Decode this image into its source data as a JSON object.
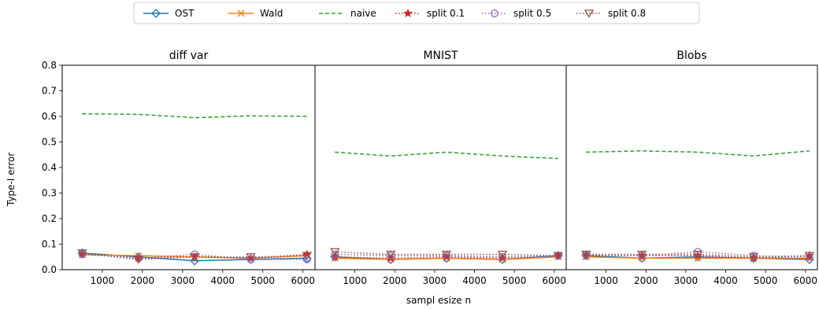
{
  "legend": {
    "placement": "top-center",
    "entries": [
      {
        "label": "OST",
        "color": "#1f77b4",
        "dash": "solid",
        "marker": "diamond"
      },
      {
        "label": "Wald",
        "color": "#ff7f0e",
        "dash": "solid",
        "marker": "x"
      },
      {
        "label": "naive",
        "color": "#2ca02c",
        "dash": "dashed",
        "marker": "none"
      },
      {
        "label": "split 0.1",
        "color": "#d62728",
        "dash": "dotted",
        "marker": "star"
      },
      {
        "label": "split 0.5",
        "color": "#9467bd",
        "dash": "dotted",
        "marker": "circle"
      },
      {
        "label": "split 0.8",
        "color": "#8c564b",
        "dash": "dotted",
        "marker": "triangle-down"
      }
    ]
  },
  "xlabel": "sampl esize n",
  "ylabel": "Type-I error",
  "chart_data": [
    {
      "type": "line",
      "title": "diff var",
      "x": [
        500,
        1900,
        3300,
        4700,
        6100
      ],
      "xlim": [
        0,
        6300
      ],
      "ylim": [
        0,
        0.8
      ],
      "xticks": [
        "1000",
        "2000",
        "3000",
        "4000",
        "5000",
        "6000"
      ],
      "yticks": [
        "0.0",
        "0.1",
        "0.2",
        "0.3",
        "0.4",
        "0.5",
        "0.6",
        "0.7",
        "0.8"
      ],
      "series": [
        {
          "name": "OST",
          "values": [
            0.065,
            0.05,
            0.035,
            0.04,
            0.045
          ]
        },
        {
          "name": "Wald",
          "values": [
            0.058,
            0.055,
            0.05,
            0.045,
            0.055
          ]
        },
        {
          "name": "naive",
          "values": [
            0.61,
            0.608,
            0.595,
            0.602,
            0.6
          ]
        },
        {
          "name": "split 0.1",
          "values": [
            0.062,
            0.045,
            0.05,
            0.045,
            0.06
          ]
        },
        {
          "name": "split 0.5",
          "values": [
            0.06,
            0.045,
            0.06,
            0.04,
            0.04
          ]
        },
        {
          "name": "split 0.8",
          "values": [
            0.065,
            0.04,
            0.05,
            0.05,
            0.055
          ]
        }
      ]
    },
    {
      "type": "line",
      "title": "MNIST",
      "x": [
        500,
        1900,
        3300,
        4700,
        6100
      ],
      "xlim": [
        0,
        6300
      ],
      "ylim": [
        0,
        0.8
      ],
      "xticks": [
        "1000",
        "2000",
        "3000",
        "4000",
        "5000",
        "6000"
      ],
      "yticks": [],
      "series": [
        {
          "name": "OST",
          "values": [
            0.05,
            0.04,
            0.045,
            0.04,
            0.055
          ]
        },
        {
          "name": "Wald",
          "values": [
            0.045,
            0.04,
            0.045,
            0.04,
            0.05
          ]
        },
        {
          "name": "naive",
          "values": [
            0.46,
            0.445,
            0.46,
            0.445,
            0.435
          ]
        },
        {
          "name": "split 0.1",
          "values": [
            0.05,
            0.045,
            0.05,
            0.045,
            0.055
          ]
        },
        {
          "name": "split 0.5",
          "values": [
            0.06,
            0.055,
            0.055,
            0.05,
            0.055
          ]
        },
        {
          "name": "split 0.8",
          "values": [
            0.07,
            0.06,
            0.06,
            0.06,
            0.055
          ]
        }
      ]
    },
    {
      "type": "line",
      "title": "Blobs",
      "x": [
        500,
        1900,
        3300,
        4700,
        6100
      ],
      "xlim": [
        0,
        6300
      ],
      "ylim": [
        0,
        0.8
      ],
      "xticks": [
        "1000",
        "2000",
        "3000",
        "4000",
        "5000",
        "6000"
      ],
      "yticks": [],
      "series": [
        {
          "name": "OST",
          "values": [
            0.055,
            0.045,
            0.05,
            0.045,
            0.04
          ]
        },
        {
          "name": "Wald",
          "values": [
            0.05,
            0.045,
            0.045,
            0.045,
            0.045
          ]
        },
        {
          "name": "naive",
          "values": [
            0.46,
            0.465,
            0.46,
            0.445,
            0.465
          ]
        },
        {
          "name": "split 0.1",
          "values": [
            0.055,
            0.055,
            0.055,
            0.045,
            0.055
          ]
        },
        {
          "name": "split 0.5",
          "values": [
            0.06,
            0.055,
            0.07,
            0.055,
            0.05
          ]
        },
        {
          "name": "split 0.8",
          "values": [
            0.06,
            0.06,
            0.06,
            0.05,
            0.055
          ]
        }
      ]
    }
  ]
}
